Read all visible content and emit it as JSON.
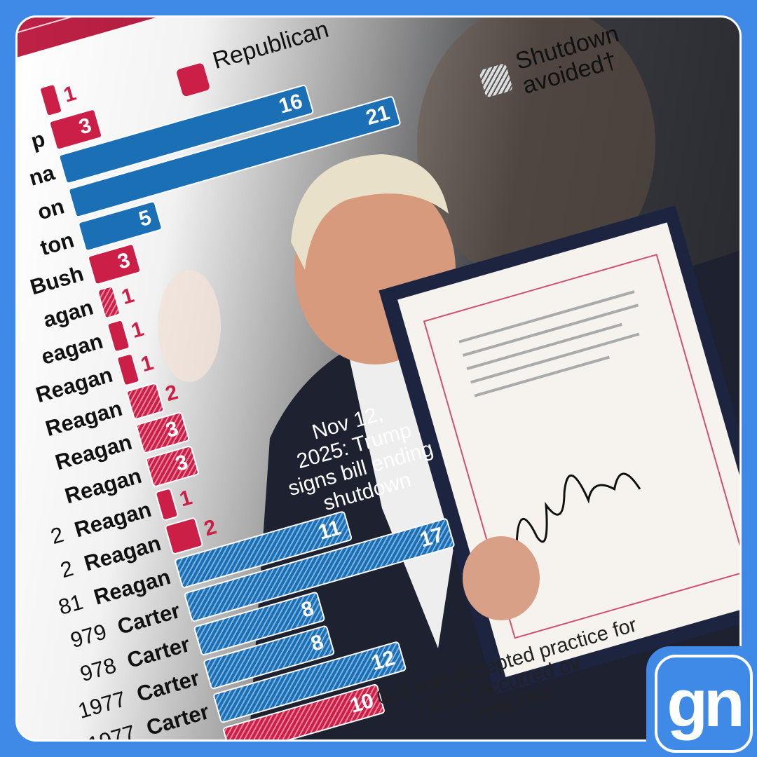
{
  "colors": {
    "frame": "#3f8ae6",
    "republican": "#cc1f48",
    "democrat": "#1a6fb5"
  },
  "legend": {
    "republican": "Republican",
    "avoided_line1": "Shutdown",
    "avoided_line2": "avoided†"
  },
  "annotation": {
    "line1": "Nov 12,",
    "line2": "2025: Trump",
    "line3": "signs bill ending",
    "line4": "shutdown"
  },
  "footnote": {
    "line1": "0, it was accepted practice for",
    "line2": "r 1982 occurred ov",
    "line3": "ress rest"
  },
  "logo": {
    "text": "gn"
  },
  "chart_data": {
    "type": "bar",
    "orientation": "horizontal",
    "legend": [
      "Republican",
      "Shutdown avoided†"
    ],
    "rows": [
      {
        "year": "",
        "president": "",
        "value": 1,
        "party": "Republican",
        "avoided": false
      },
      {
        "year": "",
        "president": "p",
        "value": 3,
        "party": "Republican",
        "avoided": false
      },
      {
        "year": "",
        "president": "na",
        "value": 16,
        "party": "Democrat",
        "avoided": false
      },
      {
        "year": "",
        "president": "on",
        "value": 21,
        "party": "Democrat",
        "avoided": false
      },
      {
        "year": "",
        "president": "ton",
        "value": 5,
        "party": "Democrat",
        "avoided": false
      },
      {
        "year": "",
        "president": "Bush",
        "value": 3,
        "party": "Republican",
        "avoided": false
      },
      {
        "year": "",
        "president": "agan",
        "value": 1,
        "party": "Republican",
        "avoided": true
      },
      {
        "year": "",
        "president": "eagan",
        "value": 1,
        "party": "Republican",
        "avoided": false
      },
      {
        "year": "",
        "president": "Reagan",
        "value": 1,
        "party": "Republican",
        "avoided": false
      },
      {
        "year": "",
        "president": "Reagan",
        "value": 2,
        "party": "Republican",
        "avoided": true
      },
      {
        "year": "",
        "president": "Reagan",
        "value": 3,
        "party": "Republican",
        "avoided": true
      },
      {
        "year": "",
        "president": "Reagan",
        "value": 3,
        "party": "Republican",
        "avoided": true
      },
      {
        "year": "2",
        "president": "Reagan",
        "value": 1,
        "party": "Republican",
        "avoided": false
      },
      {
        "year": "2",
        "president": "Reagan",
        "value": 2,
        "party": "Republican",
        "avoided": false
      },
      {
        "year": "81",
        "president": "Reagan",
        "value": 11,
        "party": "Democrat",
        "avoided": true
      },
      {
        "year": "979",
        "president": "Carter",
        "value": 17,
        "party": "Democrat",
        "avoided": true
      },
      {
        "year": "978",
        "president": "Carter",
        "value": 8,
        "party": "Democrat",
        "avoided": true
      },
      {
        "year": "1977",
        "president": "Carter",
        "value": 8,
        "party": "Democrat",
        "avoided": true
      },
      {
        "year": "1977",
        "president": "Carter",
        "value": 12,
        "party": "Democrat",
        "avoided": true
      },
      {
        "year": "",
        "president": "Carter",
        "value": 10,
        "party": "Republican",
        "avoided": true
      }
    ]
  }
}
